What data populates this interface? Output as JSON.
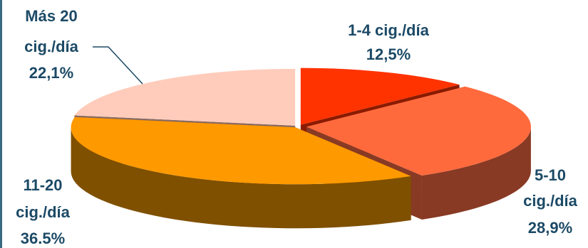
{
  "chart_data": {
    "type": "pie",
    "style": "3d-exploded",
    "slices": [
      {
        "name_lines": [
          "1-4 cig./día"
        ],
        "label": "12,5%",
        "value": 12.5,
        "top_color": "#ff3300",
        "side_color": "#8b1a00"
      },
      {
        "name_lines": [
          "5-10",
          "cig./día"
        ],
        "label": "28,9%",
        "value": 28.9,
        "top_color": "#ff6a3d",
        "side_color": "#883a24"
      },
      {
        "name_lines": [
          "11-20",
          "cig./día"
        ],
        "label": "36.5%",
        "value": 36.5,
        "top_color": "#ff9900",
        "side_color": "#7f5000"
      },
      {
        "name_lines": [
          "Más 20",
          "cig./día"
        ],
        "label": "22,1%",
        "value": 22.1,
        "top_color": "#ffccbb",
        "side_color": "#8a6a62"
      }
    ],
    "label_color": "#1c4a66"
  }
}
